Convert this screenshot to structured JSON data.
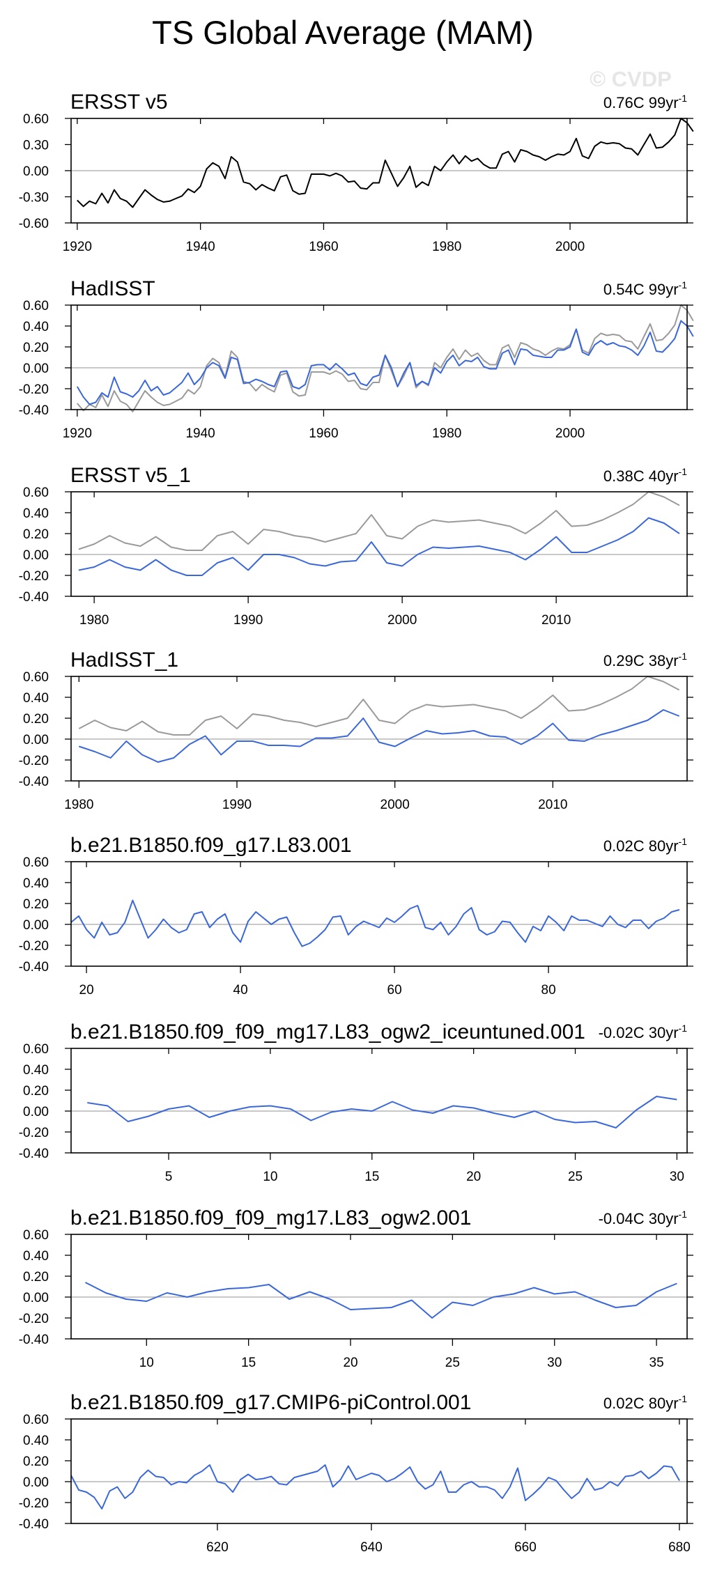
{
  "page": {
    "title": "TS Global Average (MAM)",
    "watermark": "© CVDP"
  },
  "style": {
    "observed_color": "#000000",
    "comparison_color": "#9a9a9a",
    "series_color": "#3a68d8",
    "zero_line_color": "#a8a8a8"
  },
  "chart_data": [
    {
      "type": "line",
      "title": "ERSST v5",
      "trend": "0.76C 99yr",
      "trend_sup": "-1",
      "xlim": [
        1919,
        2019
      ],
      "ylim": [
        -0.6,
        0.6
      ],
      "yticks": [
        "0.60",
        "0.30",
        "0.00",
        "-0.30",
        "-0.60"
      ],
      "ytick_values": [
        0.6,
        0.3,
        0.0,
        -0.3,
        -0.6
      ],
      "xticks": [
        1920,
        1940,
        1960,
        1980,
        2000
      ],
      "x_start": 1920,
      "series": [
        {
          "role": "observed",
          "values": [
            -0.34,
            -0.41,
            -0.35,
            -0.38,
            -0.26,
            -0.37,
            -0.22,
            -0.32,
            -0.35,
            -0.42,
            -0.32,
            -0.22,
            -0.28,
            -0.33,
            -0.36,
            -0.35,
            -0.32,
            -0.29,
            -0.21,
            -0.25,
            -0.18,
            0.02,
            0.09,
            0.05,
            -0.09,
            0.16,
            0.1,
            -0.13,
            -0.15,
            -0.22,
            -0.16,
            -0.2,
            -0.23,
            -0.07,
            -0.05,
            -0.23,
            -0.27,
            -0.26,
            -0.04,
            -0.04,
            -0.04,
            -0.06,
            -0.03,
            -0.06,
            -0.13,
            -0.12,
            -0.2,
            -0.21,
            -0.14,
            -0.14,
            0.12,
            -0.03,
            -0.18,
            -0.08,
            0.05,
            -0.19,
            -0.13,
            -0.17,
            0.05,
            0.0,
            0.1,
            0.18,
            0.08,
            0.17,
            0.11,
            0.14,
            0.07,
            0.03,
            0.03,
            0.19,
            0.22,
            0.1,
            0.24,
            0.22,
            0.18,
            0.16,
            0.12,
            0.16,
            0.19,
            0.18,
            0.22,
            0.37,
            0.17,
            0.14,
            0.28,
            0.33,
            0.31,
            0.32,
            0.31,
            0.26,
            0.25,
            0.18,
            0.3,
            0.42,
            0.26,
            0.27,
            0.33,
            0.41,
            0.6,
            0.55,
            0.45
          ]
        }
      ]
    },
    {
      "type": "line",
      "title": "HadISST",
      "trend": "0.54C 99yr",
      "trend_sup": "-1",
      "xlim": [
        1919,
        2019
      ],
      "ylim": [
        -0.4,
        0.6
      ],
      "yticks": [
        "0.60",
        "0.40",
        "0.20",
        "0.00",
        "-0.20",
        "-0.40"
      ],
      "ytick_values": [
        0.6,
        0.4,
        0.2,
        0.0,
        -0.2,
        -0.4
      ],
      "xticks": [
        1920,
        1940,
        1960,
        1980,
        2000
      ],
      "x_start": 1920,
      "series": [
        {
          "role": "comparison",
          "values": [
            -0.34,
            -0.41,
            -0.35,
            -0.38,
            -0.26,
            -0.37,
            -0.22,
            -0.32,
            -0.35,
            -0.42,
            -0.32,
            -0.22,
            -0.28,
            -0.33,
            -0.36,
            -0.35,
            -0.32,
            -0.29,
            -0.21,
            -0.25,
            -0.18,
            0.02,
            0.09,
            0.05,
            -0.09,
            0.16,
            0.1,
            -0.13,
            -0.15,
            -0.22,
            -0.16,
            -0.2,
            -0.23,
            -0.07,
            -0.05,
            -0.23,
            -0.27,
            -0.26,
            -0.04,
            -0.04,
            -0.04,
            -0.06,
            -0.03,
            -0.06,
            -0.13,
            -0.12,
            -0.2,
            -0.21,
            -0.14,
            -0.14,
            0.12,
            -0.03,
            -0.18,
            -0.08,
            0.05,
            -0.19,
            -0.13,
            -0.17,
            0.05,
            0.0,
            0.1,
            0.18,
            0.08,
            0.17,
            0.11,
            0.14,
            0.07,
            0.03,
            0.03,
            0.19,
            0.22,
            0.1,
            0.24,
            0.22,
            0.18,
            0.16,
            0.12,
            0.16,
            0.19,
            0.18,
            0.22,
            0.37,
            0.17,
            0.14,
            0.28,
            0.33,
            0.31,
            0.32,
            0.31,
            0.26,
            0.25,
            0.18,
            0.3,
            0.42,
            0.26,
            0.27,
            0.33,
            0.41,
            0.6,
            0.55,
            0.45
          ]
        },
        {
          "role": "series",
          "values": [
            -0.18,
            -0.28,
            -0.35,
            -0.33,
            -0.24,
            -0.28,
            -0.09,
            -0.23,
            -0.25,
            -0.28,
            -0.22,
            -0.12,
            -0.22,
            -0.18,
            -0.26,
            -0.24,
            -0.19,
            -0.14,
            -0.05,
            -0.16,
            -0.1,
            0.0,
            0.05,
            0.02,
            -0.1,
            0.1,
            0.08,
            -0.15,
            -0.14,
            -0.11,
            -0.13,
            -0.16,
            -0.18,
            -0.04,
            -0.03,
            -0.18,
            -0.2,
            -0.16,
            0.02,
            0.03,
            0.03,
            -0.02,
            0.04,
            -0.01,
            -0.07,
            -0.05,
            -0.15,
            -0.17,
            -0.09,
            -0.07,
            0.12,
            0.0,
            -0.18,
            -0.05,
            0.05,
            -0.17,
            -0.13,
            -0.16,
            0.0,
            -0.05,
            0.06,
            0.12,
            0.02,
            0.07,
            0.06,
            0.1,
            0.01,
            -0.01,
            -0.01,
            0.14,
            0.17,
            0.03,
            0.18,
            0.17,
            0.12,
            0.11,
            0.1,
            0.1,
            0.17,
            0.17,
            0.2,
            0.37,
            0.15,
            0.12,
            0.22,
            0.26,
            0.22,
            0.24,
            0.21,
            0.2,
            0.17,
            0.12,
            0.21,
            0.34,
            0.16,
            0.15,
            0.21,
            0.28,
            0.45,
            0.4,
            0.3
          ]
        }
      ]
    },
    {
      "type": "line",
      "title": "ERSST v5_1",
      "trend": "0.38C 40yr",
      "trend_sup": "-1",
      "xlim": [
        1978.5,
        2018.5
      ],
      "ylim": [
        -0.4,
        0.6
      ],
      "yticks": [
        "0.60",
        "0.40",
        "0.20",
        "0.00",
        "-0.20",
        "-0.40"
      ],
      "ytick_values": [
        0.6,
        0.4,
        0.2,
        0.0,
        -0.2,
        -0.4
      ],
      "xticks": [
        1980,
        1990,
        2000,
        2010
      ],
      "x_start": 1979,
      "series": [
        {
          "role": "comparison",
          "values": [
            0.05,
            0.1,
            0.18,
            0.11,
            0.08,
            0.17,
            0.07,
            0.04,
            0.04,
            0.18,
            0.22,
            0.1,
            0.24,
            0.22,
            0.18,
            0.16,
            0.12,
            0.16,
            0.2,
            0.38,
            0.18,
            0.15,
            0.27,
            0.33,
            0.31,
            0.32,
            0.33,
            0.3,
            0.27,
            0.2,
            0.3,
            0.42,
            0.27,
            0.28,
            0.33,
            0.4,
            0.48,
            0.6,
            0.55,
            0.47
          ]
        },
        {
          "role": "series",
          "values": [
            -0.15,
            -0.12,
            -0.05,
            -0.12,
            -0.15,
            -0.05,
            -0.15,
            -0.2,
            -0.2,
            -0.08,
            -0.03,
            -0.15,
            0.0,
            0.0,
            -0.03,
            -0.09,
            -0.11,
            -0.07,
            -0.06,
            0.12,
            -0.08,
            -0.11,
            0.0,
            0.07,
            0.06,
            0.07,
            0.08,
            0.05,
            0.02,
            -0.05,
            0.05,
            0.17,
            0.02,
            0.02,
            0.08,
            0.14,
            0.22,
            0.35,
            0.3,
            0.2
          ]
        }
      ]
    },
    {
      "type": "line",
      "title": "HadISST_1",
      "trend": "0.29C 38yr",
      "trend_sup": "-1",
      "xlim": [
        1979.5,
        2018.5
      ],
      "ylim": [
        -0.4,
        0.6
      ],
      "yticks": [
        "0.60",
        "0.40",
        "0.20",
        "0.00",
        "-0.20",
        "-0.40"
      ],
      "ytick_values": [
        0.6,
        0.4,
        0.2,
        0.0,
        -0.2,
        -0.4
      ],
      "xticks": [
        1980,
        1990,
        2000,
        2010
      ],
      "x_start": 1980,
      "series": [
        {
          "role": "comparison",
          "values": [
            0.1,
            0.18,
            0.11,
            0.08,
            0.17,
            0.07,
            0.04,
            0.04,
            0.18,
            0.22,
            0.1,
            0.24,
            0.22,
            0.18,
            0.16,
            0.12,
            0.16,
            0.2,
            0.38,
            0.18,
            0.15,
            0.27,
            0.33,
            0.31,
            0.32,
            0.33,
            0.3,
            0.27,
            0.2,
            0.3,
            0.42,
            0.27,
            0.28,
            0.33,
            0.4,
            0.48,
            0.6,
            0.55,
            0.47
          ]
        },
        {
          "role": "series",
          "values": [
            -0.07,
            -0.12,
            -0.18,
            -0.02,
            -0.15,
            -0.22,
            -0.18,
            -0.05,
            0.03,
            -0.15,
            -0.02,
            -0.02,
            -0.06,
            -0.06,
            -0.07,
            0.01,
            0.01,
            0.03,
            0.2,
            -0.03,
            -0.07,
            0.01,
            0.08,
            0.05,
            0.06,
            0.08,
            0.03,
            0.02,
            -0.05,
            0.03,
            0.15,
            -0.01,
            -0.02,
            0.04,
            0.08,
            0.13,
            0.18,
            0.28,
            0.22
          ]
        }
      ]
    },
    {
      "type": "line",
      "title": "b.e21.B1850.f09_g17.L83.001",
      "trend": "0.02C 80yr",
      "trend_sup": "-1",
      "xlim": [
        18,
        98
      ],
      "ylim": [
        -0.4,
        0.6
      ],
      "yticks": [
        "0.60",
        "0.40",
        "0.20",
        "0.00",
        "-0.20",
        "-0.40"
      ],
      "ytick_values": [
        0.6,
        0.4,
        0.2,
        0.0,
        -0.2,
        -0.4
      ],
      "xticks": [
        20,
        40,
        60,
        80
      ],
      "x_start": 18,
      "series": [
        {
          "role": "series",
          "values": [
            0.02,
            0.08,
            -0.05,
            -0.13,
            0.02,
            -0.1,
            -0.08,
            0.02,
            0.23,
            0.05,
            -0.13,
            -0.05,
            0.05,
            -0.03,
            -0.08,
            -0.05,
            0.1,
            0.12,
            -0.03,
            0.05,
            0.1,
            -0.08,
            -0.17,
            0.03,
            0.12,
            0.06,
            0.0,
            0.05,
            0.07,
            -0.08,
            -0.21,
            -0.18,
            -0.12,
            -0.05,
            0.07,
            0.08,
            -0.1,
            -0.02,
            0.03,
            0.0,
            -0.03,
            0.06,
            0.02,
            0.08,
            0.15,
            0.18,
            -0.03,
            -0.05,
            0.02,
            -0.1,
            -0.02,
            0.1,
            0.16,
            -0.05,
            -0.1,
            -0.07,
            0.03,
            0.02,
            -0.08,
            -0.17,
            -0.02,
            -0.06,
            0.08,
            0.02,
            -0.06,
            0.08,
            0.04,
            0.04,
            0.01,
            -0.02,
            0.08,
            0.0,
            -0.03,
            0.04,
            0.04,
            -0.04,
            0.03,
            0.06,
            0.12,
            0.14
          ]
        }
      ]
    },
    {
      "type": "line",
      "title": "b.e21.B1850.f09_f09_mg17.L83_ogw2_iceuntuned.001",
      "trend": "-0.02C 30yr",
      "trend_sup": "-1",
      "xlim": [
        0.2,
        30.5
      ],
      "ylim": [
        -0.4,
        0.6
      ],
      "yticks": [
        "0.60",
        "0.40",
        "0.20",
        "0.00",
        "-0.20",
        "-0.40"
      ],
      "ytick_values": [
        0.6,
        0.4,
        0.2,
        0.0,
        -0.2,
        -0.4
      ],
      "xticks": [
        5,
        10,
        15,
        20,
        25,
        30
      ],
      "x_start": 1,
      "series": [
        {
          "role": "series",
          "values": [
            0.08,
            0.05,
            -0.1,
            -0.05,
            0.02,
            0.05,
            -0.06,
            0.0,
            0.04,
            0.05,
            0.02,
            -0.09,
            -0.01,
            0.02,
            0.0,
            0.09,
            0.01,
            -0.02,
            0.05,
            0.03,
            -0.02,
            -0.06,
            0.0,
            -0.08,
            -0.11,
            -0.1,
            -0.16,
            0.01,
            0.14,
            0.11
          ]
        }
      ]
    },
    {
      "type": "line",
      "title": "b.e21.B1850.f09_f09_mg17.L83_ogw2.001",
      "trend": "-0.04C 30yr",
      "trend_sup": "-1",
      "xlim": [
        6.3,
        36.5
      ],
      "ylim": [
        -0.4,
        0.6
      ],
      "yticks": [
        "0.60",
        "0.40",
        "0.20",
        "0.00",
        "-0.20",
        "-0.40"
      ],
      "ytick_values": [
        0.6,
        0.4,
        0.2,
        0.0,
        -0.2,
        -0.4
      ],
      "xticks": [
        10,
        15,
        20,
        25,
        30,
        35
      ],
      "x_start": 7,
      "series": [
        {
          "role": "series",
          "values": [
            0.14,
            0.04,
            -0.02,
            -0.04,
            0.04,
            0.0,
            0.05,
            0.08,
            0.09,
            0.12,
            -0.02,
            0.05,
            -0.02,
            -0.12,
            -0.11,
            -0.1,
            -0.03,
            -0.2,
            -0.05,
            -0.08,
            0.0,
            0.03,
            0.09,
            0.03,
            0.05,
            -0.03,
            -0.1,
            -0.08,
            0.05,
            0.13
          ]
        }
      ]
    },
    {
      "type": "line",
      "title": "b.e21.B1850.f09_g17.CMIP6-piControl.001",
      "trend": "0.02C 80yr",
      "trend_sup": "-1",
      "xlim": [
        601,
        681
      ],
      "ylim": [
        -0.4,
        0.6
      ],
      "yticks": [
        "0.60",
        "0.40",
        "0.20",
        "0.00",
        "-0.20",
        "-0.40"
      ],
      "ytick_values": [
        0.6,
        0.4,
        0.2,
        0.0,
        -0.2,
        -0.4
      ],
      "xticks": [
        620,
        640,
        660,
        680
      ],
      "x_start": 601,
      "series": [
        {
          "role": "series",
          "values": [
            0.06,
            -0.08,
            -0.1,
            -0.15,
            -0.26,
            -0.09,
            -0.05,
            -0.16,
            -0.1,
            0.04,
            0.11,
            0.05,
            0.04,
            -0.03,
            0.0,
            -0.01,
            0.06,
            0.1,
            0.16,
            0.0,
            -0.02,
            -0.1,
            0.02,
            0.07,
            0.02,
            0.03,
            0.05,
            -0.02,
            -0.03,
            0.04,
            0.06,
            0.08,
            0.1,
            0.16,
            -0.05,
            0.02,
            0.15,
            0.02,
            0.05,
            0.08,
            0.06,
            0.0,
            0.03,
            0.08,
            0.14,
            0.0,
            -0.07,
            -0.03,
            0.1,
            -0.1,
            -0.1,
            -0.03,
            0.0,
            -0.05,
            -0.05,
            -0.08,
            -0.16,
            -0.05,
            0.13,
            -0.18,
            -0.12,
            -0.05,
            0.04,
            0.01,
            -0.08,
            -0.16,
            -0.1,
            0.03,
            -0.08,
            -0.06,
            0.0,
            -0.04,
            0.05,
            0.06,
            0.1,
            0.03,
            0.08,
            0.15,
            0.14,
            0.01
          ]
        }
      ]
    }
  ]
}
